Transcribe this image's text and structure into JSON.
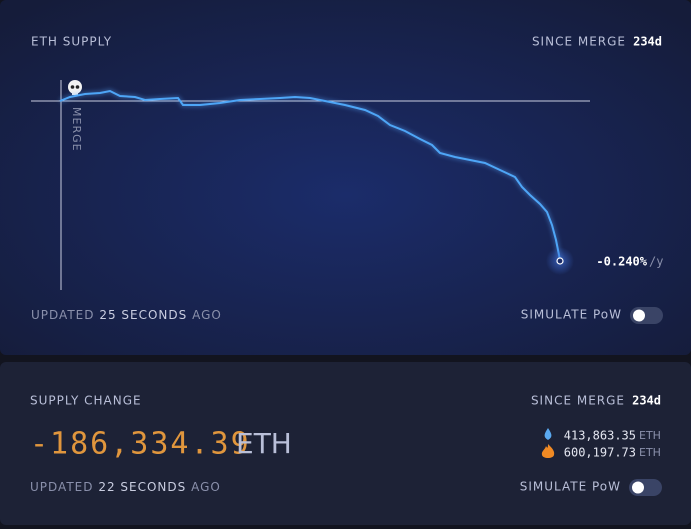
{
  "supply_card": {
    "title": "ETH SUPPLY",
    "since_label": "SINCE MERGE",
    "since_value": "234d",
    "merge_label": "MERGE",
    "rate_value": "-0.240%",
    "rate_unit": "/y",
    "updated_prefix": "UPDATED",
    "updated_value": "25 SECONDS",
    "updated_suffix": "AGO",
    "toggle_label": "SIMULATE PoW"
  },
  "change_card": {
    "title": "SUPPLY CHANGE",
    "since_label": "SINCE MERGE",
    "since_value": "234d",
    "amount": "-186,334.39",
    "amount_unit": "ETH",
    "issued_value": "413,863.35",
    "issued_unit": "ETH",
    "burned_value": "600,197.73",
    "burned_unit": "ETH",
    "updated_prefix": "UPDATED",
    "updated_value": "22 SECONDS",
    "updated_suffix": "AGO",
    "toggle_label": "SIMULATE PoW"
  }
}
